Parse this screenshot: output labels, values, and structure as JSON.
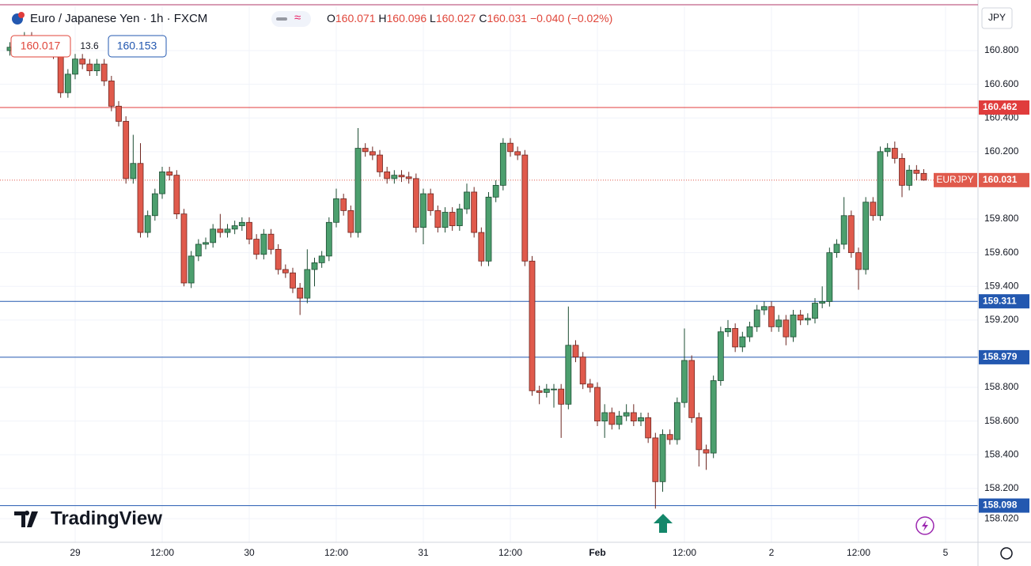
{
  "chart_data": {
    "type": "candlestick",
    "title": "Euro / Japanese Yen · 1h · FXCM",
    "currency": "JPY",
    "symbol": "EURJPY",
    "brand": "TradingView",
    "ohlc_labels": [
      "O",
      "H",
      "L",
      "C"
    ],
    "change": "−0.040 (−0.02%)",
    "sell": "160.017",
    "spread": "13.6",
    "buy": "160.153",
    "up_color": "#4c9f6e",
    "down_color": "#e05a4c",
    "ylim": [
      157.88,
      161.063
    ],
    "yticks": [
      {
        "value": 158.02,
        "label": "158.020"
      },
      {
        "value": 158.2,
        "label": "158.200"
      },
      {
        "value": 158.4,
        "label": "158.400"
      },
      {
        "value": 158.6,
        "label": "158.600"
      },
      {
        "value": 158.8,
        "label": "158.800"
      },
      {
        "value": 159.2,
        "label": "159.200"
      },
      {
        "value": 159.4,
        "label": "159.400"
      },
      {
        "value": 159.6,
        "label": "159.600"
      },
      {
        "value": 159.8,
        "label": "159.800"
      },
      {
        "value": 160.2,
        "label": "160.200"
      },
      {
        "value": 160.4,
        "label": "160.400"
      },
      {
        "value": 160.6,
        "label": "160.600"
      },
      {
        "value": 160.8,
        "label": "160.800"
      }
    ],
    "grid": true,
    "levels": [
      {
        "value": 160.462,
        "color": "#e03c3c"
      },
      {
        "value": 159.311,
        "color": "#2358b0"
      },
      {
        "value": 158.979,
        "color": "#2358b0"
      },
      {
        "value": 158.098,
        "color": "#2358b0"
      }
    ],
    "categories": [
      null,
      null,
      null,
      null,
      null,
      null,
      null,
      null,
      null,
      "29",
      null,
      null,
      null,
      null,
      null,
      null,
      null,
      null,
      null,
      null,
      null,
      "12:00",
      null,
      null,
      null,
      null,
      null,
      null,
      null,
      null,
      null,
      null,
      null,
      "30",
      null,
      null,
      null,
      null,
      null,
      null,
      null,
      null,
      null,
      null,
      null,
      "12:00",
      null,
      null,
      null,
      null,
      null,
      null,
      null,
      null,
      null,
      null,
      null,
      "31",
      null,
      null,
      null,
      null,
      null,
      null,
      null,
      null,
      null,
      null,
      null,
      "12:00",
      null,
      null,
      null,
      null,
      null,
      null,
      null,
      null,
      null,
      null,
      null,
      "Feb",
      null,
      null,
      null,
      null,
      null,
      null,
      null,
      null,
      null,
      null,
      null,
      "12:00",
      null,
      null,
      null,
      null,
      null,
      null,
      null,
      null,
      null,
      null,
      null,
      "2",
      null,
      null,
      null,
      null,
      null,
      null,
      null,
      null,
      null,
      null,
      null,
      "12:00",
      null,
      null,
      null,
      null,
      null,
      null,
      null,
      null,
      null,
      null,
      null,
      "5"
    ],
    "open": [
      160.8,
      160.82,
      160.85,
      160.88,
      160.85,
      160.82,
      160.8,
      160.78,
      160.55,
      160.66,
      160.75,
      160.72,
      160.68,
      160.72,
      160.62,
      160.47,
      160.38,
      160.04,
      160.13,
      159.72,
      159.82,
      159.95,
      160.08,
      160.06,
      159.83,
      159.42,
      159.58,
      159.65,
      159.66,
      159.74,
      159.72,
      159.74,
      159.76,
      159.78,
      159.68,
      159.59,
      159.71,
      159.62,
      159.5,
      159.48,
      159.39,
      159.33,
      159.5,
      159.54,
      159.58,
      159.78,
      159.92,
      159.85,
      159.72,
      160.22,
      160.2,
      160.18,
      160.08,
      160.04,
      160.06,
      160.05,
      160.04,
      159.75,
      159.95,
      159.85,
      159.75,
      159.84,
      159.76,
      159.86,
      159.96,
      159.72,
      159.55,
      159.93,
      160.0,
      160.25,
      160.2,
      160.18,
      159.55,
      158.78,
      158.77,
      158.79,
      158.79,
      158.7,
      159.05,
      158.98,
      158.82,
      158.8,
      158.6,
      158.65,
      158.58,
      158.63,
      158.65,
      158.6,
      158.62,
      158.5,
      158.24,
      158.52,
      158.49,
      158.71,
      158.96,
      158.62,
      158.43,
      158.41,
      158.84,
      159.13,
      159.15,
      159.04,
      159.1,
      159.16,
      159.26,
      159.28,
      159.16,
      159.2,
      159.1,
      159.23,
      159.2,
      159.21,
      159.3,
      159.31,
      159.6,
      159.65,
      159.82,
      159.6,
      159.5,
      159.9,
      159.82,
      160.2,
      160.22,
      160.16,
      160.0,
      160.09,
      160.071,
      null,
      null,
      null
    ],
    "high": [
      160.85,
      160.88,
      160.91,
      160.91,
      160.88,
      160.85,
      160.83,
      160.81,
      160.69,
      160.78,
      160.78,
      160.75,
      160.75,
      160.75,
      160.65,
      160.5,
      160.41,
      160.3,
      160.25,
      159.85,
      159.98,
      160.11,
      160.11,
      160.09,
      159.86,
      159.61,
      159.68,
      159.69,
      159.77,
      159.83,
      159.77,
      159.79,
      159.81,
      159.81,
      159.71,
      159.74,
      159.74,
      159.65,
      159.53,
      159.51,
      159.42,
      159.62,
      159.57,
      159.61,
      159.81,
      159.98,
      159.95,
      159.88,
      160.34,
      160.25,
      160.23,
      160.21,
      160.11,
      160.09,
      160.09,
      160.08,
      160.07,
      159.98,
      159.98,
      159.88,
      159.87,
      159.87,
      159.89,
      160.01,
      159.99,
      159.75,
      159.96,
      160.03,
      160.28,
      160.28,
      160.23,
      160.21,
      159.58,
      158.81,
      158.82,
      158.82,
      158.82,
      159.28,
      159.08,
      159.01,
      158.85,
      158.83,
      158.7,
      158.68,
      158.66,
      158.7,
      158.7,
      158.65,
      158.65,
      158.53,
      158.55,
      158.55,
      158.74,
      159.15,
      158.99,
      158.65,
      158.46,
      158.87,
      159.16,
      159.2,
      159.18,
      159.13,
      159.19,
      159.29,
      159.31,
      159.31,
      159.23,
      159.23,
      159.26,
      159.26,
      159.24,
      159.33,
      159.4,
      159.63,
      159.68,
      159.93,
      159.85,
      159.63,
      159.93,
      159.93,
      160.23,
      160.25,
      160.26,
      160.19,
      160.12,
      160.12,
      160.096,
      null,
      null,
      null
    ],
    "low": [
      160.77,
      160.79,
      160.82,
      160.82,
      160.79,
      160.77,
      160.75,
      160.52,
      160.52,
      160.63,
      160.69,
      160.65,
      160.65,
      160.59,
      160.44,
      160.35,
      160.01,
      160.01,
      159.69,
      159.69,
      159.79,
      159.92,
      160.03,
      159.8,
      159.4,
      159.39,
      159.55,
      159.62,
      159.63,
      159.69,
      159.69,
      159.71,
      159.73,
      159.65,
      159.56,
      159.56,
      159.59,
      159.47,
      159.45,
      159.36,
      159.23,
      159.3,
      159.4,
      159.51,
      159.55,
      159.75,
      159.82,
      159.69,
      159.69,
      160.17,
      160.15,
      160.05,
      160.01,
      160.01,
      160.02,
      160.01,
      159.72,
      159.65,
      159.82,
      159.72,
      159.72,
      159.73,
      159.73,
      159.83,
      159.69,
      159.52,
      159.52,
      159.9,
      159.97,
      160.17,
      160.15,
      159.52,
      158.75,
      158.7,
      158.74,
      158.68,
      158.5,
      158.67,
      158.95,
      158.79,
      158.77,
      158.57,
      158.5,
      158.55,
      158.55,
      158.6,
      158.57,
      158.57,
      158.47,
      158.08,
      158.18,
      158.46,
      158.46,
      158.68,
      158.59,
      158.33,
      158.31,
      158.38,
      158.81,
      159.1,
      159.01,
      159.01,
      159.07,
      159.13,
      159.23,
      159.13,
      159.13,
      159.05,
      159.07,
      159.17,
      159.17,
      159.18,
      159.27,
      159.28,
      159.57,
      159.62,
      159.57,
      159.38,
      159.47,
      159.79,
      159.79,
      160.17,
      160.13,
      159.93,
      159.97,
      160.03,
      160.027,
      null,
      null,
      null
    ],
    "close": [
      160.82,
      160.85,
      160.88,
      160.85,
      160.82,
      160.8,
      160.78,
      160.55,
      160.66,
      160.75,
      160.72,
      160.68,
      160.72,
      160.62,
      160.47,
      160.38,
      160.04,
      160.13,
      159.72,
      159.82,
      159.95,
      160.08,
      160.06,
      159.83,
      159.42,
      159.58,
      159.65,
      159.66,
      159.74,
      159.72,
      159.74,
      159.76,
      159.78,
      159.68,
      159.59,
      159.71,
      159.62,
      159.5,
      159.48,
      159.39,
      159.33,
      159.5,
      159.54,
      159.58,
      159.78,
      159.92,
      159.85,
      159.72,
      160.22,
      160.2,
      160.18,
      160.08,
      160.04,
      160.06,
      160.05,
      160.04,
      159.75,
      159.95,
      159.85,
      159.75,
      159.84,
      159.76,
      159.86,
      159.96,
      159.72,
      159.55,
      159.93,
      160.0,
      160.25,
      160.2,
      160.18,
      159.55,
      158.78,
      158.77,
      158.79,
      158.79,
      158.7,
      159.05,
      158.98,
      158.82,
      158.8,
      158.6,
      158.65,
      158.58,
      158.63,
      158.65,
      158.6,
      158.62,
      158.5,
      158.24,
      158.52,
      158.49,
      158.71,
      158.96,
      158.62,
      158.43,
      158.41,
      158.84,
      159.13,
      159.15,
      159.04,
      159.1,
      159.16,
      159.26,
      159.28,
      159.16,
      159.2,
      159.1,
      159.23,
      159.2,
      159.21,
      159.3,
      159.31,
      159.6,
      159.65,
      159.82,
      159.6,
      159.5,
      159.9,
      159.82,
      160.2,
      160.22,
      160.16,
      160.0,
      160.09,
      160.071,
      160.031,
      null,
      null,
      null
    ]
  }
}
